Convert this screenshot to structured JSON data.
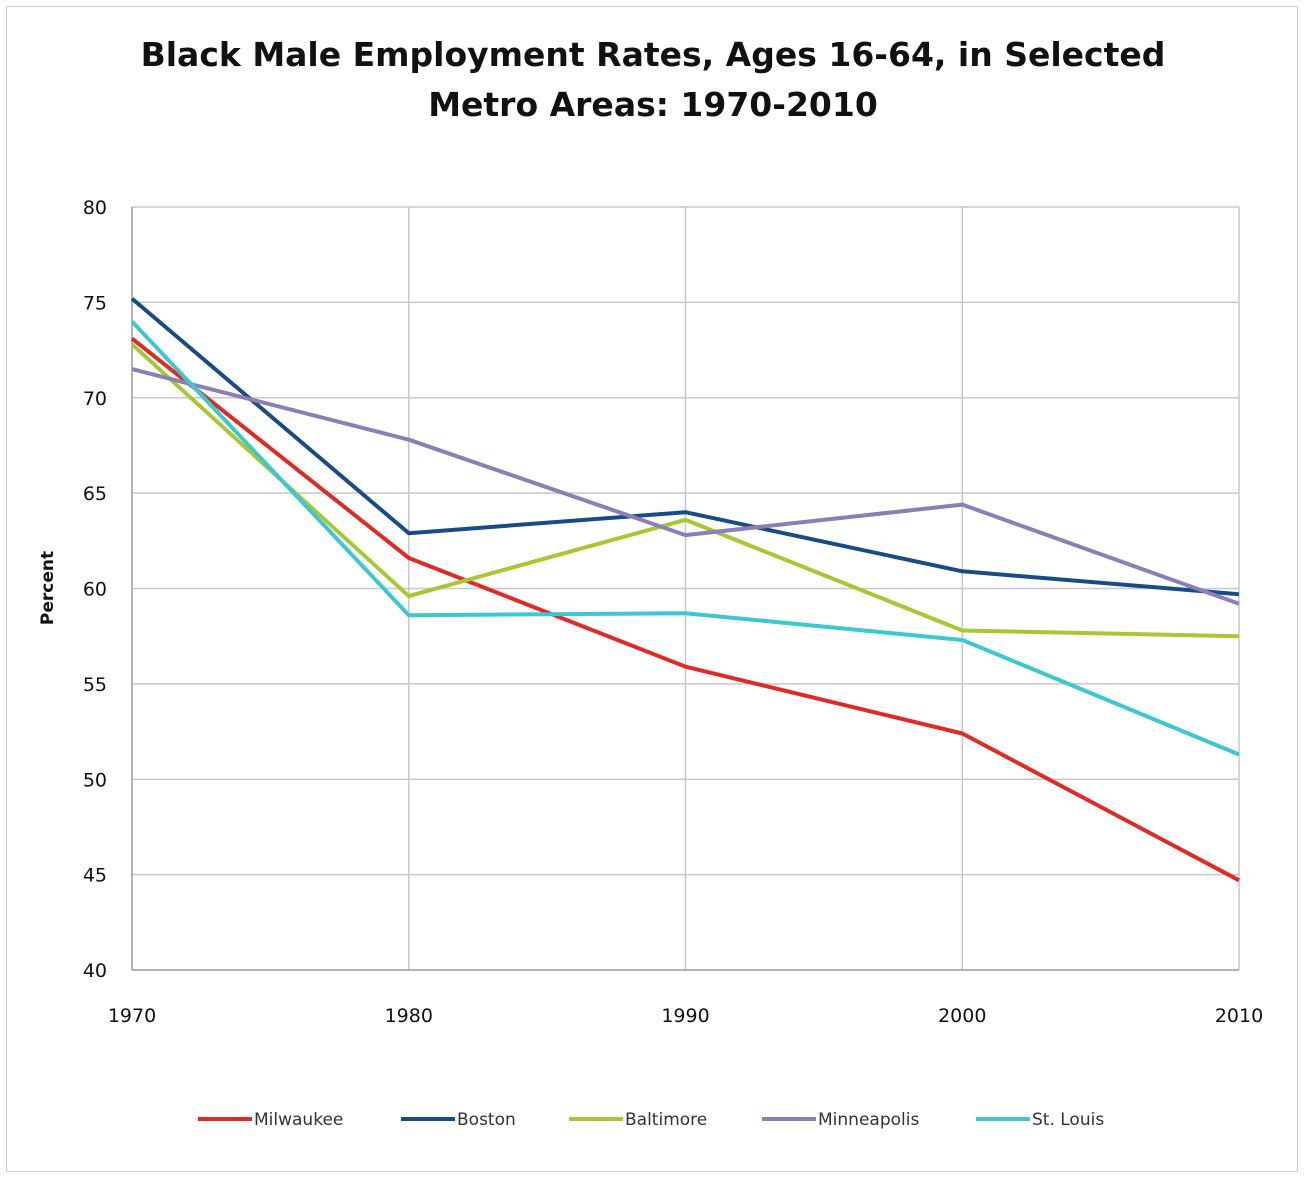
{
  "chart_data": {
    "type": "line",
    "title_lines": [
      "Black Male Employment Rates, Ages 16-64, in Selected",
      "Metro Areas: 1970-2010"
    ],
    "xlabel": "",
    "ylabel": "Percent",
    "x": [
      1970,
      1980,
      1990,
      2000,
      2010
    ],
    "x_ticks": [
      "1970",
      "1980",
      "1990",
      "2000",
      "2010"
    ],
    "ylim": [
      40,
      80
    ],
    "y_ticks": [
      "40",
      "45",
      "50",
      "55",
      "60",
      "65",
      "70",
      "75",
      "80"
    ],
    "grid": true,
    "legend_position": "bottom",
    "series": [
      {
        "name": "Milwaukee",
        "color": "#e02a24",
        "values": [
          73.1,
          61.6,
          55.9,
          52.4,
          44.7
        ]
      },
      {
        "name": "Boston",
        "color": "#174c87",
        "values": [
          75.2,
          62.9,
          64.0,
          60.9,
          59.7
        ]
      },
      {
        "name": "Baltimore",
        "color": "#a7c832",
        "values": [
          72.8,
          59.6,
          63.6,
          57.8,
          57.5
        ]
      },
      {
        "name": "Minneapolis",
        "color": "#8a7fb6",
        "values": [
          71.5,
          67.8,
          62.8,
          64.4,
          59.2
        ]
      },
      {
        "name": "St. Louis",
        "color": "#3cc8d0",
        "values": [
          74.0,
          58.6,
          58.7,
          57.3,
          51.3
        ]
      }
    ]
  }
}
